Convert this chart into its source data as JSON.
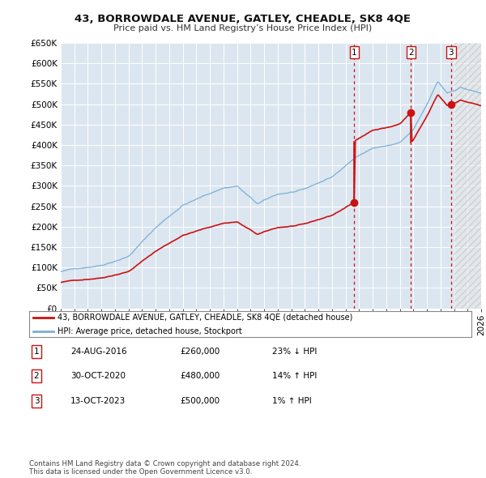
{
  "title": "43, BORROWDALE AVENUE, GATLEY, CHEADLE, SK8 4QE",
  "subtitle": "Price paid vs. HM Land Registry’s House Price Index (HPI)",
  "ylabel_ticks": [
    "£0",
    "£50K",
    "£100K",
    "£150K",
    "£200K",
    "£250K",
    "£300K",
    "£350K",
    "£400K",
    "£450K",
    "£500K",
    "£550K",
    "£600K",
    "£650K"
  ],
  "ylim": [
    0,
    650000
  ],
  "ytick_vals": [
    0,
    50000,
    100000,
    150000,
    200000,
    250000,
    300000,
    350000,
    400000,
    450000,
    500000,
    550000,
    600000,
    650000
  ],
  "hpi_color": "#7bafd4",
  "price_color": "#cc1111",
  "sale_points": [
    {
      "year": 2016.65,
      "price": 260000,
      "label": "1"
    },
    {
      "year": 2020.83,
      "price": 480000,
      "label": "2"
    },
    {
      "year": 2023.78,
      "price": 500000,
      "label": "3"
    }
  ],
  "vline_color": "#cc1111",
  "legend_entries": [
    "43, BORROWDALE AVENUE, GATLEY, CHEADLE, SK8 4QE (detached house)",
    "HPI: Average price, detached house, Stockport"
  ],
  "table_rows": [
    {
      "num": "1",
      "date": "24-AUG-2016",
      "price": "£260,000",
      "change": "23% ↓ HPI"
    },
    {
      "num": "2",
      "date": "30-OCT-2020",
      "price": "£480,000",
      "change": "14% ↑ HPI"
    },
    {
      "num": "3",
      "date": "13-OCT-2023",
      "price": "£500,000",
      "change": "1% ↑ HPI"
    }
  ],
  "footnote": "Contains HM Land Registry data © Crown copyright and database right 2024.\nThis data is licensed under the Open Government Licence v3.0.",
  "bg_color": "#ffffff",
  "plot_bg_color": "#dce6f0",
  "grid_color": "#ffffff",
  "hatch_color": "#cccccc"
}
